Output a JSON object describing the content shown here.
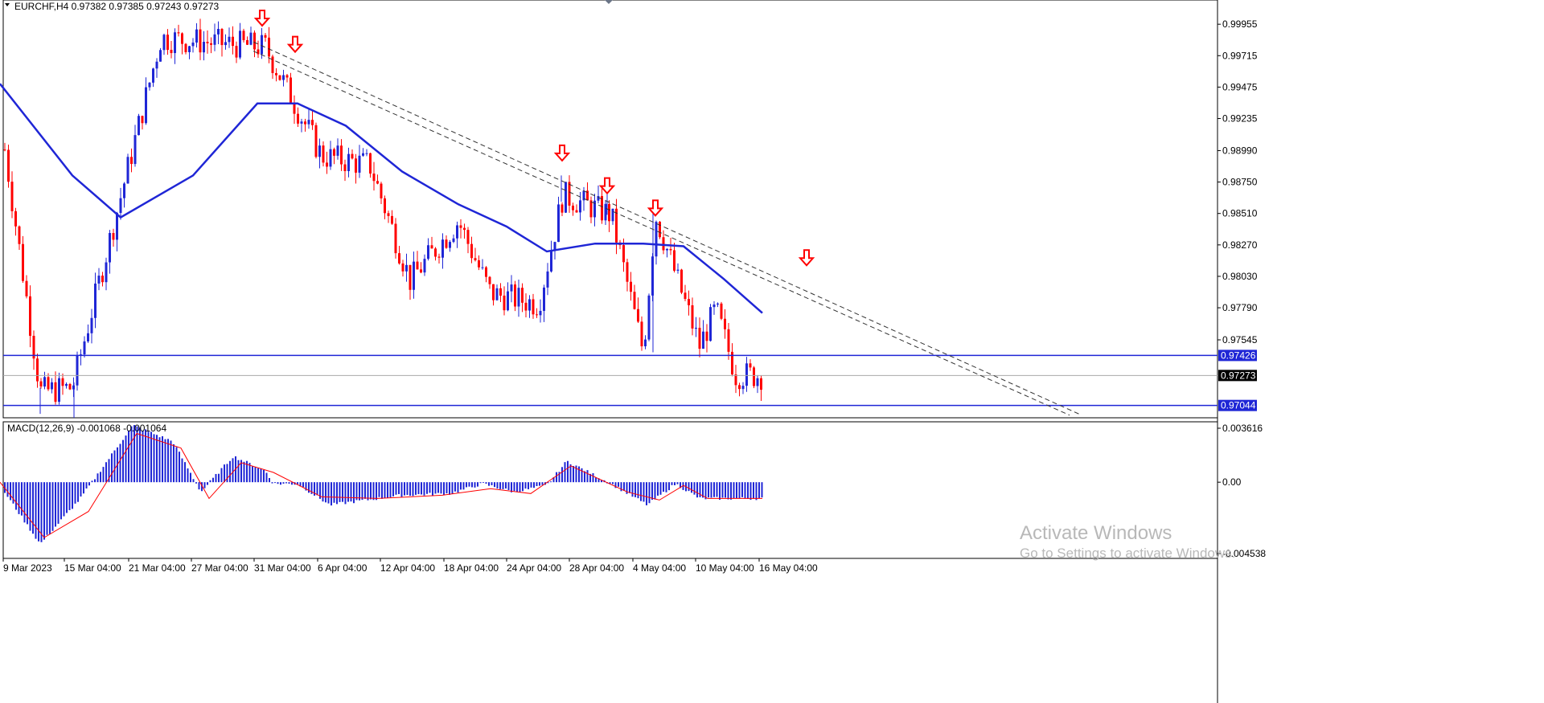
{
  "window": {
    "symbol_header": "EURCHF,H4  0.97382 0.97385 0.97243 0.97273"
  },
  "colors": {
    "up_candle": "#1f26d6",
    "down_candle": "#ff0000",
    "moving_average": "#1f26d6",
    "trendline": "#333333",
    "arrow": "#ff0000",
    "level_line": "#1f26d6",
    "current_price_line": "#a9a9a9",
    "macd_histogram": "#1f26d6",
    "macd_signal": "#ff0000",
    "badge_blue": "#1f26d6",
    "badge_black": "#000000"
  },
  "icons": {
    "header_dropdown": "triangle-down-icon",
    "signal_arrow": "down-arrow-icon",
    "scroll_marker": "diamond-icon"
  },
  "price_axis": {
    "labels": [
      "0.99955",
      "0.99715",
      "0.99475",
      "0.99235",
      "0.98990",
      "0.98750",
      "0.98510",
      "0.98270",
      "0.98030",
      "0.97790",
      "0.97545"
    ],
    "range": [
      0.9695,
      1.0014
    ]
  },
  "badges": {
    "resistance_level": "0.97426",
    "current_price": "0.97273",
    "support_level": "0.97044"
  },
  "time_axis": {
    "labels": [
      "9 Mar 2023",
      "15 Mar 04:00",
      "21 Mar 04:00",
      "27 Mar 04:00",
      "31 Mar 04:00",
      "6 Apr 04:00",
      "12 Apr 04:00",
      "18 Apr 04:00",
      "24 Apr 04:00",
      "28 Apr 04:00",
      "4 May 04:00",
      "10 May 04:00",
      "16 May 04:00"
    ]
  },
  "macd": {
    "header": "MACD(12,26,9) -0.001068 -0.001064",
    "axis_labels": [
      "0.003616",
      "0.00",
      "-0.004538"
    ],
    "range": [
      -0.004538,
      0.003616
    ]
  },
  "watermark": {
    "title": "Activate Windows",
    "subtitle": "Go to Settings to activate Windows."
  },
  "chart_data": {
    "type": "candlestick",
    "symbol": "EURCHF",
    "timeframe": "H4",
    "last_close": 0.97273,
    "key_points": [
      {
        "x": 0,
        "price": 0.9925
      },
      {
        "x": 50,
        "price": 0.9715
      },
      {
        "x": 90,
        "price": 0.9718
      },
      {
        "x": 200,
        "price": 0.9985
      },
      {
        "x": 330,
        "price": 0.9978
      },
      {
        "x": 400,
        "price": 0.9895
      },
      {
        "x": 460,
        "price": 0.9888
      },
      {
        "x": 510,
        "price": 0.98
      },
      {
        "x": 570,
        "price": 0.9845
      },
      {
        "x": 610,
        "price": 0.979
      },
      {
        "x": 670,
        "price": 0.9782
      },
      {
        "x": 700,
        "price": 0.9865
      },
      {
        "x": 760,
        "price": 0.985
      },
      {
        "x": 800,
        "price": 0.9745
      },
      {
        "x": 815,
        "price": 0.985
      },
      {
        "x": 870,
        "price": 0.975
      },
      {
        "x": 890,
        "price": 0.9778
      },
      {
        "x": 915,
        "price": 0.9728
      },
      {
        "x": 948,
        "price": 0.97273
      }
    ],
    "moving_average_points": [
      {
        "x": 0,
        "price": 0.995
      },
      {
        "x": 90,
        "price": 0.988
      },
      {
        "x": 150,
        "price": 0.9848
      },
      {
        "x": 240,
        "price": 0.988
      },
      {
        "x": 320,
        "price": 0.9935
      },
      {
        "x": 370,
        "price": 0.9935
      },
      {
        "x": 430,
        "price": 0.9918
      },
      {
        "x": 500,
        "price": 0.9883
      },
      {
        "x": 570,
        "price": 0.9858
      },
      {
        "x": 630,
        "price": 0.9841
      },
      {
        "x": 680,
        "price": 0.9822
      },
      {
        "x": 740,
        "price": 0.9828
      },
      {
        "x": 800,
        "price": 0.9828
      },
      {
        "x": 850,
        "price": 0.9826
      },
      {
        "x": 900,
        "price": 0.9801
      },
      {
        "x": 948,
        "price": 0.9775
      }
    ],
    "trendlines": [
      {
        "from": {
          "x": 315,
          "price": 0.9982
        },
        "to": {
          "x": 1345,
          "price": 0.9697
        }
      },
      {
        "from": {
          "x": 315,
          "price": 0.9975
        },
        "to": {
          "x": 1330,
          "price": 0.9697
        }
      }
    ],
    "signal_arrows": [
      {
        "x": 326,
        "price": 0.9995
      },
      {
        "x": 367,
        "price": 0.9975
      },
      {
        "x": 699,
        "price": 0.9892
      },
      {
        "x": 755,
        "price": 0.9867
      },
      {
        "x": 815,
        "price": 0.985
      },
      {
        "x": 1003,
        "price": 0.9812
      }
    ],
    "horizontal_levels": [
      0.97426,
      0.97044
    ],
    "macd_key_points": [
      {
        "x": 0,
        "value": -0.0002
      },
      {
        "x": 50,
        "value": -0.0038
      },
      {
        "x": 100,
        "value": -0.001
      },
      {
        "x": 165,
        "value": 0.0035
      },
      {
        "x": 215,
        "value": 0.0025
      },
      {
        "x": 250,
        "value": -0.0006
      },
      {
        "x": 290,
        "value": 0.0016
      },
      {
        "x": 330,
        "value": 0.0007
      },
      {
        "x": 340,
        "value": -0.0001
      },
      {
        "x": 370,
        "value": -0.0001
      },
      {
        "x": 410,
        "value": -0.0014
      },
      {
        "x": 500,
        "value": -0.0008
      },
      {
        "x": 560,
        "value": -0.0007
      },
      {
        "x": 600,
        "value": -0.0001
      },
      {
        "x": 640,
        "value": -0.0006
      },
      {
        "x": 680,
        "value": -0.0002
      },
      {
        "x": 705,
        "value": 0.0013
      },
      {
        "x": 760,
        "value": -0.0001
      },
      {
        "x": 805,
        "value": -0.0014
      },
      {
        "x": 840,
        "value": -0.0001
      },
      {
        "x": 870,
        "value": -0.001
      },
      {
        "x": 948,
        "value": -0.001
      }
    ],
    "macd_signal_points": [
      {
        "x": 0,
        "value": 0.0
      },
      {
        "x": 55,
        "value": -0.0034
      },
      {
        "x": 110,
        "value": -0.0018
      },
      {
        "x": 170,
        "value": 0.003
      },
      {
        "x": 225,
        "value": 0.0021
      },
      {
        "x": 260,
        "value": -0.001
      },
      {
        "x": 300,
        "value": 0.0012
      },
      {
        "x": 340,
        "value": 0.0006
      },
      {
        "x": 400,
        "value": -0.0009
      },
      {
        "x": 470,
        "value": -0.001
      },
      {
        "x": 550,
        "value": -0.0008
      },
      {
        "x": 610,
        "value": -0.0004
      },
      {
        "x": 660,
        "value": -0.0007
      },
      {
        "x": 710,
        "value": 0.001
      },
      {
        "x": 780,
        "value": -0.0006
      },
      {
        "x": 820,
        "value": -0.0011
      },
      {
        "x": 850,
        "value": -0.0002
      },
      {
        "x": 880,
        "value": -0.001
      },
      {
        "x": 948,
        "value": -0.001
      }
    ]
  }
}
